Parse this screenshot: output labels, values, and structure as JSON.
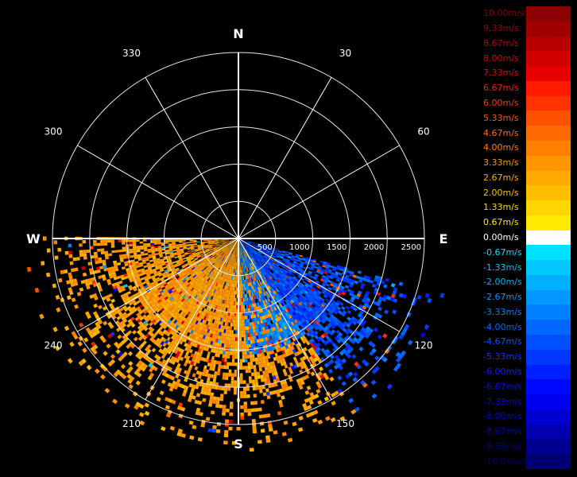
{
  "chart_data": {
    "type": "polar-ppi",
    "cardinals": {
      "north": "N",
      "south": "S",
      "east": "E",
      "west": "W"
    },
    "azimuth_labels": [
      {
        "deg": 30,
        "text": "30"
      },
      {
        "deg": 60,
        "text": "60"
      },
      {
        "deg": 120,
        "text": "120"
      },
      {
        "deg": 150,
        "text": "150"
      },
      {
        "deg": 210,
        "text": "210"
      },
      {
        "deg": 240,
        "text": "240"
      },
      {
        "deg": 300,
        "text": "300"
      },
      {
        "deg": 330,
        "text": "330"
      }
    ],
    "range_rings": [
      500,
      1000,
      1500,
      2000,
      2500
    ],
    "range_labels": [
      "500",
      "1000",
      "1500",
      "2000",
      "2500"
    ],
    "radial_spokes_deg": [
      0,
      30,
      60,
      90,
      120,
      150,
      180,
      210,
      240,
      270,
      300,
      330
    ],
    "scan_sector_deg": [
      105,
      270
    ],
    "data_max_range": 2850,
    "velocity_scale": {
      "unit": "m/s",
      "labels": [
        "10.00m/s",
        "9.33m/s",
        "8.67m/s",
        "8.00m/s",
        "7.33m/s",
        "6.67m/s",
        "6.00m/s",
        "5.33m/s",
        "4.67m/s",
        "4.00m/s",
        "3.33m/s",
        "2.67m/s",
        "2.00m/s",
        "1.33m/s",
        "0.67m/s",
        "0.00m/s",
        "-0.67m/s",
        "-1.33m/s",
        "-2.00m/s",
        "-2.67m/s",
        "-3.33m/s",
        "-4.00m/s",
        "-4.67m/s",
        "-5.33m/s",
        "-6.00m/s",
        "-6.67m/s",
        "-7.33m/s",
        "-8.00m/s",
        "-8.67m/s",
        "-9.33m/s",
        "-10.00m/s"
      ],
      "colors": [
        "#8b0000",
        "#a00000",
        "#b80000",
        "#d00000",
        "#e60000",
        "#ff1a00",
        "#ff3300",
        "#ff5200",
        "#ff6a00",
        "#ff8000",
        "#ff9500",
        "#ffaa00",
        "#ffbf00",
        "#ffd500",
        "#ffea00",
        "#ffffff",
        "#00e0ff",
        "#00c8ff",
        "#00b0ff",
        "#0098ff",
        "#0080ff",
        "#0068ff",
        "#0050ff",
        "#0038ff",
        "#0020ff",
        "#0008ff",
        "#0000f0",
        "#0000d0",
        "#0000b0",
        "#000090",
        "#000070"
      ]
    }
  }
}
